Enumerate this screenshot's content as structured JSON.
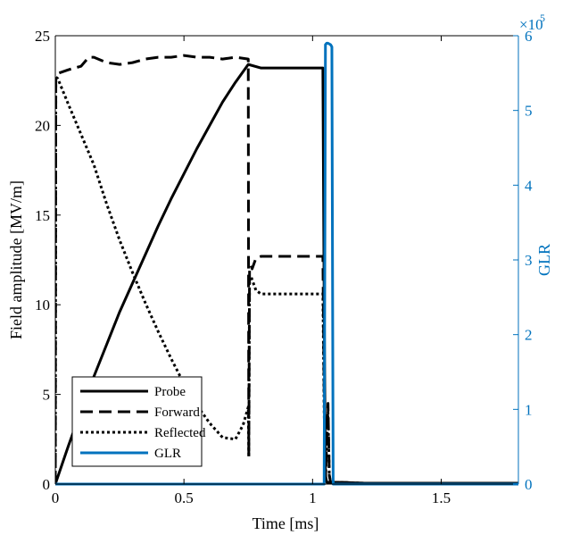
{
  "chart_data": {
    "type": "line",
    "xlabel": "Time [ms]",
    "ylabel": "Field amplitude [MV/m]",
    "y2label": "GLR",
    "y2_multiplier": {
      "base": "×10",
      "exponent": "5"
    },
    "xlim": [
      0,
      1.8
    ],
    "ylim": [
      0,
      25
    ],
    "y2lim": [
      0,
      6
    ],
    "x_ticks": [
      0,
      0.5,
      1,
      1.5
    ],
    "x_tick_labels": [
      "0",
      "0.5",
      "1",
      "1.5"
    ],
    "y_ticks": [
      0,
      5,
      10,
      15,
      20,
      25
    ],
    "y_tick_labels": [
      "0",
      "5",
      "10",
      "15",
      "20",
      "25"
    ],
    "y2_ticks": [
      0,
      1,
      2,
      3,
      4,
      5,
      6
    ],
    "y2_tick_labels": [
      "0",
      "1",
      "2",
      "3",
      "4",
      "5",
      "6"
    ],
    "grid": false,
    "legend_placement": "lower-left",
    "colors": {
      "black": "#000000",
      "glr": "#0072BD"
    },
    "series": [
      {
        "name": "Probe",
        "axis": "left",
        "style": "solid",
        "color": "#000000",
        "x": [
          0,
          0.05,
          0.1,
          0.15,
          0.2,
          0.25,
          0.3,
          0.35,
          0.4,
          0.45,
          0.5,
          0.55,
          0.6,
          0.65,
          0.7,
          0.75,
          0.8,
          0.9,
          1.0,
          1.04,
          1.045,
          1.05,
          1.055,
          1.1,
          1.2,
          1.4,
          1.6,
          1.8
        ],
        "y": [
          0,
          2.1,
          4.1,
          6.0,
          7.8,
          9.6,
          11.2,
          12.8,
          14.4,
          15.9,
          17.3,
          18.7,
          20.0,
          21.3,
          22.4,
          23.4,
          23.2,
          23.2,
          23.2,
          23.2,
          10.0,
          0.5,
          0.1,
          0.1,
          0.05,
          0.05,
          0.05,
          0.05
        ]
      },
      {
        "name": "Forward",
        "axis": "left",
        "style": "dashed",
        "color": "#000000",
        "x": [
          0,
          0.002,
          0.01,
          0.05,
          0.1,
          0.13,
          0.15,
          0.2,
          0.25,
          0.3,
          0.35,
          0.4,
          0.45,
          0.5,
          0.55,
          0.6,
          0.65,
          0.7,
          0.75,
          0.752,
          0.755,
          0.76,
          0.765,
          0.78,
          0.8,
          0.85,
          0.9,
          0.95,
          1.0,
          1.04,
          1.045,
          1.05,
          1.06,
          1.065,
          1.07,
          1.1,
          1.2,
          1.4,
          1.6,
          1.8
        ],
        "y": [
          0,
          22.7,
          22.9,
          23.1,
          23.3,
          23.8,
          23.8,
          23.5,
          23.4,
          23.5,
          23.7,
          23.8,
          23.8,
          23.9,
          23.8,
          23.8,
          23.7,
          23.8,
          23.7,
          1.5,
          11.9,
          12.2,
          12.0,
          12.6,
          12.7,
          12.7,
          12.7,
          12.7,
          12.7,
          12.7,
          5.0,
          0.3,
          4.5,
          0.5,
          0.1,
          0.1,
          0.05,
          0.05,
          0.05,
          0.05
        ]
      },
      {
        "name": "Reflected",
        "axis": "left",
        "style": "dotted",
        "color": "#000000",
        "x": [
          0,
          0.002,
          0.01,
          0.05,
          0.1,
          0.15,
          0.2,
          0.25,
          0.3,
          0.35,
          0.4,
          0.45,
          0.5,
          0.55,
          0.6,
          0.65,
          0.7,
          0.73,
          0.75,
          0.752,
          0.755,
          0.76,
          0.78,
          0.8,
          0.85,
          0.9,
          0.95,
          1.0,
          1.04,
          1.045,
          1.05,
          1.06,
          1.065,
          1.07,
          1.1,
          1.2,
          1.4,
          1.6,
          1.8
        ],
        "y": [
          0,
          22.7,
          22.6,
          21.2,
          19.5,
          17.8,
          15.6,
          13.6,
          11.8,
          10.1,
          8.5,
          7.0,
          5.6,
          4.4,
          3.4,
          2.6,
          2.5,
          3.3,
          4.3,
          1.5,
          11.5,
          11.6,
          10.8,
          10.6,
          10.6,
          10.6,
          10.6,
          10.6,
          10.6,
          4.0,
          0.3,
          4.0,
          0.5,
          0.1,
          0.1,
          0.05,
          0.05,
          0.05,
          0.05
        ]
      },
      {
        "name": "GLR",
        "axis": "right",
        "style": "solid",
        "color": "#0072BD",
        "x": [
          0,
          1.0,
          1.04,
          1.045,
          1.05,
          1.055,
          1.06,
          1.07,
          1.075,
          1.08,
          1.1,
          1.4,
          1.8
        ],
        "y": [
          0,
          0,
          0,
          0,
          5.88,
          5.9,
          5.9,
          5.88,
          5.85,
          0,
          0,
          0,
          0
        ]
      }
    ]
  }
}
